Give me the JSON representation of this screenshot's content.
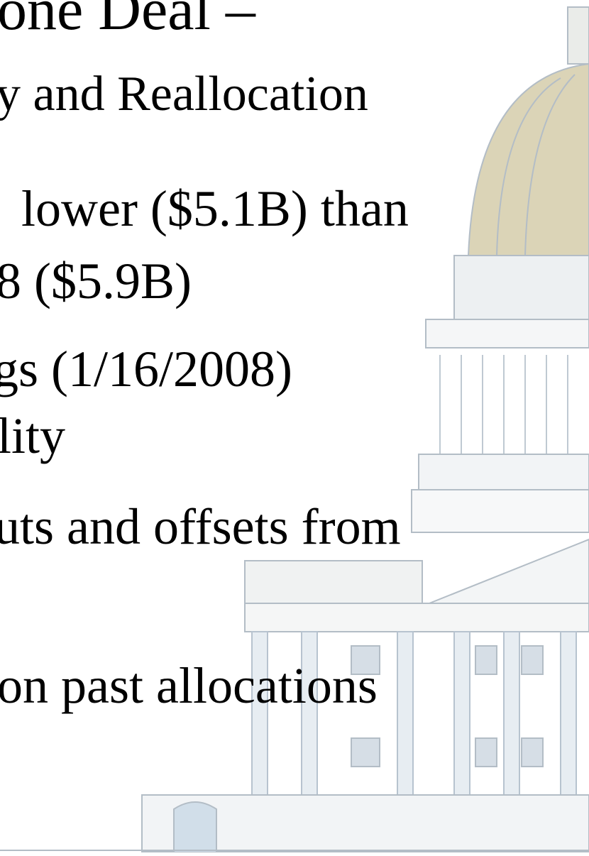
{
  "slide": {
    "title": "one Deal –",
    "subtitle": "y and Reallocation",
    "lines": [
      "lower ($5.1B) than",
      "8 ($5.9B)",
      "gs (1/16/2008)",
      "lity",
      "uts and offsets from",
      "on past allocations"
    ]
  }
}
